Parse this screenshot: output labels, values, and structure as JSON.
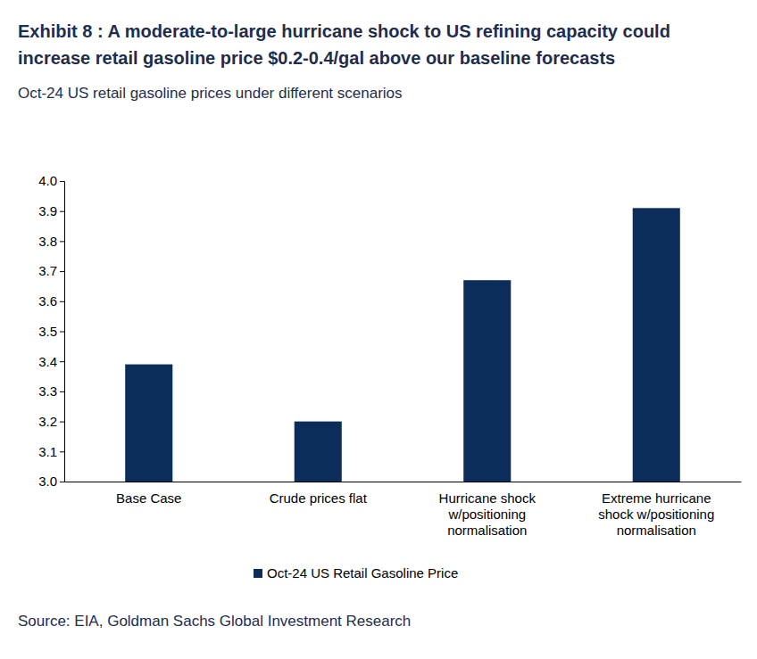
{
  "chart_data": {
    "type": "bar",
    "title": "Exhibit 8 : A moderate-to-large hurricane shock to US refining capacity could increase retail gasoline price $0.2-0.4/gal above our baseline forecasts",
    "subtitle": "Oct-24 US retail gasoline prices under different scenarios",
    "source": "Source: EIA, Goldman Sachs Global Investment Research",
    "categories": [
      "Base Case",
      "Crude prices flat",
      "Hurricane shock w/positioning normalisation",
      "Extreme hurricane shock w/positioning normalisation"
    ],
    "series": [
      {
        "name": "Oct-24 US Retail Gasoline Price",
        "color": "#0c2d5a",
        "values": [
          3.39,
          3.2,
          3.67,
          3.91
        ]
      }
    ],
    "ylim": [
      3.0,
      4.0
    ],
    "yticks": [
      {
        "value": 3.0,
        "label": "3.0"
      },
      3.1,
      3.2,
      3.3,
      3.4,
      3.5,
      3.6,
      3.7,
      3.8,
      3.9,
      {
        "value": 4.0,
        "label": "4.0"
      }
    ],
    "grid": false,
    "legend": "bottom"
  }
}
